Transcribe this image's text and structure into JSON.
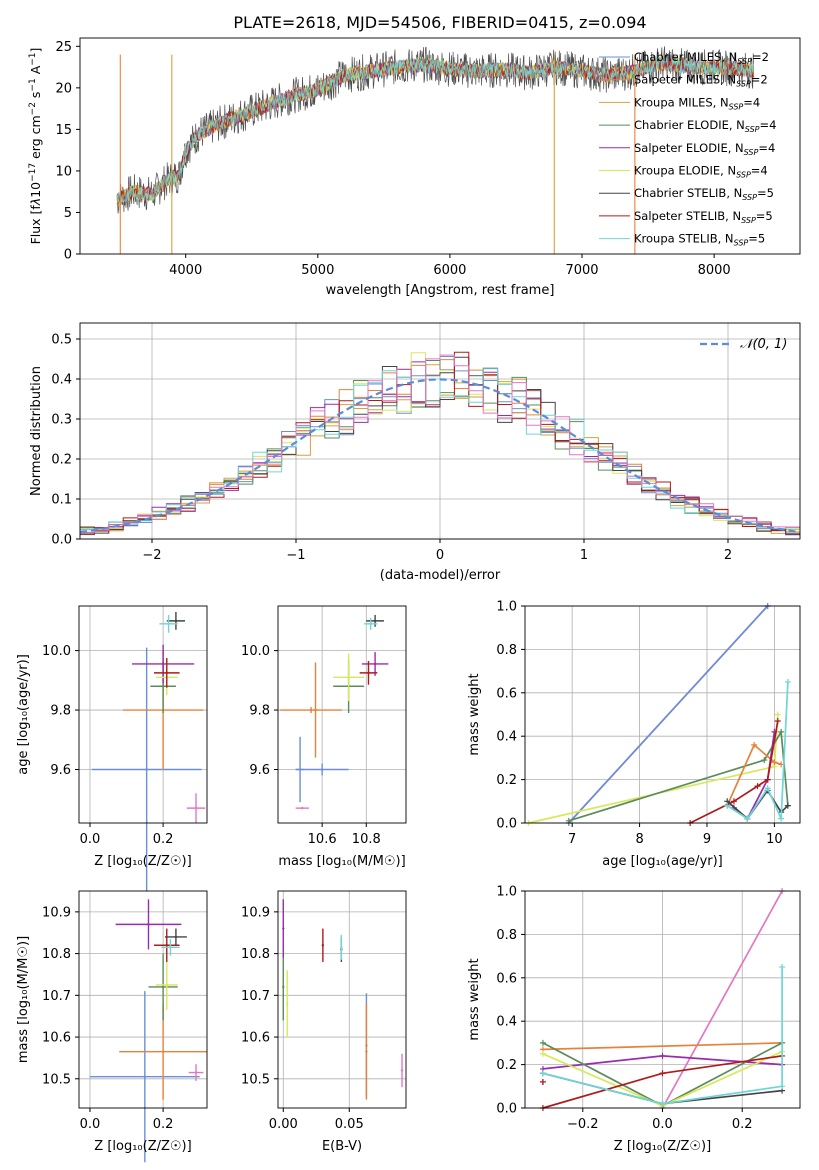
{
  "chart_data": [
    {
      "type": "line",
      "title": "PLATE=2618, MJD=54506, FIBERID=0415, z=0.094",
      "xlabel": "wavelength [Angstrom, rest frame]",
      "ylabel": "Flux [fλ10⁻¹⁷ erg cm⁻² s⁻¹ A⁻¹]",
      "xlim": [
        3200,
        8650
      ],
      "ylim": [
        0,
        26
      ],
      "xticks": [
        "4000",
        "5000",
        "6000",
        "7000",
        "8000"
      ],
      "yticks": [
        "0",
        "5",
        "10",
        "15",
        "20",
        "25"
      ],
      "legend_position": "right",
      "continuum_points": [
        [
          3480,
          6.5
        ],
        [
          3600,
          7.5
        ],
        [
          3750,
          7.2
        ],
        [
          3850,
          8.8
        ],
        [
          3950,
          9.5
        ],
        [
          4000,
          12.5
        ],
        [
          4100,
          14.5
        ],
        [
          4300,
          16
        ],
        [
          4500,
          17.2
        ],
        [
          4800,
          19
        ],
        [
          5000,
          19.8
        ],
        [
          5200,
          21.5
        ],
        [
          5400,
          22
        ],
        [
          5600,
          22.5
        ],
        [
          5800,
          22.8
        ],
        [
          6000,
          22.3
        ],
        [
          6200,
          22
        ],
        [
          6400,
          22.2
        ],
        [
          6600,
          21.8
        ],
        [
          6800,
          22.5
        ],
        [
          7000,
          22
        ],
        [
          7200,
          21.5
        ],
        [
          7400,
          22
        ],
        [
          7600,
          23
        ],
        [
          7800,
          22.5
        ],
        [
          8000,
          22.5
        ],
        [
          8200,
          22.3
        ],
        [
          8300,
          22
        ]
      ],
      "series": [
        {
          "name": "Chabrier MILES, N",
          "subscript": "SSP",
          "suffix": "=2",
          "color": "#6a8fd8"
        },
        {
          "name": "Salpeter MILES, N",
          "subscript": "SSP",
          "suffix": "=2",
          "color": "#e8823a"
        },
        {
          "name": "Kroupa MILES, N",
          "subscript": "SSP",
          "suffix": "=4",
          "color": "#d6a23a"
        },
        {
          "name": "Chabrier ELODIE, N",
          "subscript": "SSP",
          "suffix": "=4",
          "color": "#5b8c5a"
        },
        {
          "name": "Salpeter ELODIE, N",
          "subscript": "SSP",
          "suffix": "=4",
          "color": "#9a2bb0"
        },
        {
          "name": "Kroupa ELODIE, N",
          "subscript": "SSP",
          "suffix": "=4",
          "color": "#d8e85a"
        },
        {
          "name": "Chabrier STELIB, N",
          "subscript": "SSP",
          "suffix": "=5",
          "color": "#444444"
        },
        {
          "name": "Salpeter STELIB, N",
          "subscript": "SSP",
          "suffix": "=5",
          "color": "#b01a1a"
        },
        {
          "name": "Kroupa STELIB, N",
          "subscript": "SSP",
          "suffix": "=5",
          "color": "#6dd6d6"
        }
      ]
    },
    {
      "type": "histogram",
      "xlabel": "(data-model)/error",
      "ylabel": "Normed distribution",
      "xlim": [
        -2.5,
        2.5
      ],
      "ylim": [
        0,
        0.54
      ],
      "xticks": [
        "−2",
        "−1",
        "0",
        "1",
        "2"
      ],
      "yticks": [
        "0.0",
        "0.1",
        "0.2",
        "0.3",
        "0.4",
        "0.5"
      ],
      "legend": "𝒩(0, 1)",
      "legend_position": "top-right",
      "grid": true,
      "curve_color": "#5b8dd9"
    },
    {
      "type": "scatter",
      "xlabel": "Z [log₁₀(Z/Z☉)]",
      "ylabel": "age  [log₁₀(age/yr)]",
      "xlim": [
        -0.03,
        0.32
      ],
      "ylim": [
        9.42,
        10.15
      ],
      "xticks": [
        "0.0",
        "0.2"
      ],
      "yticks": [
        "9.6",
        "9.8",
        "10.0"
      ],
      "points": [
        {
          "x": 0.155,
          "y": 9.6,
          "xerr": 0.15,
          "yerr": 0.41,
          "color": "#6a8fd8"
        },
        {
          "x": 0.2,
          "y": 9.8,
          "xerr": 0.11,
          "yerr": 0.2,
          "color": "#e8823a"
        },
        {
          "x": 0.2,
          "y": 9.88,
          "xerr": 0.035,
          "yerr": 0.09,
          "color": "#5b8c5a"
        },
        {
          "x": 0.2,
          "y": 9.955,
          "xerr": 0.085,
          "yerr": 0.065,
          "color": "#9a2bb0"
        },
        {
          "x": 0.21,
          "y": 9.91,
          "xerr": 0.03,
          "yerr": 0.06,
          "color": "#d8e85a"
        },
        {
          "x": 0.21,
          "y": 9.925,
          "xerr": 0.035,
          "yerr": 0.05,
          "color": "#b01a1a"
        },
        {
          "x": 0.235,
          "y": 10.1,
          "xerr": 0.025,
          "yerr": 0.03,
          "color": "#444444"
        },
        {
          "x": 0.215,
          "y": 10.09,
          "xerr": 0.025,
          "yerr": 0.03,
          "color": "#6dd6d6"
        },
        {
          "x": 0.29,
          "y": 9.47,
          "xerr": 0.025,
          "yerr": 0.05,
          "color": "#e377c2"
        }
      ]
    },
    {
      "type": "scatter",
      "xlabel": "mass [log₁₀(M/M☉)]",
      "ylabel": "",
      "xlim": [
        10.4,
        10.98
      ],
      "ylim": [
        9.42,
        10.15
      ],
      "xticks": [
        "10.6",
        "10.8"
      ],
      "yticks": [
        "9.6",
        "9.8",
        "10.0"
      ],
      "points": [
        {
          "x": 10.6,
          "y": 9.6,
          "xerr": 0.12,
          "yerr": 0.02,
          "color": "#6a8fd8"
        },
        {
          "x": 10.5,
          "y": 9.6,
          "xerr": 0.02,
          "yerr": 0.11,
          "color": "#6a8fd8"
        },
        {
          "x": 10.55,
          "y": 9.8,
          "xerr": 0.14,
          "yerr": 0.01,
          "color": "#e8823a"
        },
        {
          "x": 10.57,
          "y": 9.8,
          "xerr": 0.01,
          "yerr": 0.16,
          "color": "#e8823a"
        },
        {
          "x": 10.72,
          "y": 9.88,
          "xerr": 0.07,
          "yerr": 0.09,
          "color": "#5b8c5a"
        },
        {
          "x": 10.72,
          "y": 9.91,
          "xerr": 0.07,
          "yerr": 0.08,
          "color": "#d8e85a"
        },
        {
          "x": 10.84,
          "y": 9.955,
          "xerr": 0.06,
          "yerr": 0.04,
          "color": "#9a2bb0"
        },
        {
          "x": 10.81,
          "y": 9.925,
          "xerr": 0.04,
          "yerr": 0.04,
          "color": "#b01a1a"
        },
        {
          "x": 10.84,
          "y": 10.1,
          "xerr": 0.04,
          "yerr": 0.02,
          "color": "#444444"
        },
        {
          "x": 10.82,
          "y": 10.09,
          "xerr": 0.03,
          "yerr": 0.02,
          "color": "#6dd6d6"
        },
        {
          "x": 10.51,
          "y": 9.47,
          "xerr": 0.03,
          "yerr": 0.0,
          "color": "#e377c2"
        }
      ]
    },
    {
      "type": "line",
      "xlabel": "age  [log₁₀(age/yr)]",
      "ylabel": "mass weight",
      "xlim": [
        6.3,
        10.38
      ],
      "ylim": [
        0,
        1
      ],
      "xticks": [
        "7",
        "8",
        "9",
        "10"
      ],
      "yticks": [
        "0.0",
        "0.2",
        "0.4",
        "0.6",
        "0.8",
        "1.0"
      ],
      "grid": true
    },
    {
      "type": "scatter",
      "xlabel": "Z [log₁₀(Z/Z☉)]",
      "ylabel": "mass [log₁₀(M/M☉)]",
      "xlim": [
        -0.03,
        0.32
      ],
      "ylim": [
        10.43,
        10.95
      ],
      "xticks": [
        "0.0",
        "0.2"
      ],
      "yticks": [
        "10.5",
        "10.6",
        "10.7",
        "10.8",
        "10.9"
      ],
      "points": [
        {
          "x": 0.15,
          "y": 10.505,
          "xerr": 0.15,
          "yerr": 0.205,
          "color": "#6a8fd8"
        },
        {
          "x": 0.2,
          "y": 10.565,
          "xerr": 0.12,
          "yerr": 0.115,
          "color": "#e8823a"
        },
        {
          "x": 0.2,
          "y": 10.72,
          "xerr": 0.04,
          "yerr": 0.08,
          "color": "#5b8c5a"
        },
        {
          "x": 0.16,
          "y": 10.87,
          "xerr": 0.09,
          "yerr": 0.06,
          "color": "#9a2bb0"
        },
        {
          "x": 0.21,
          "y": 10.725,
          "xerr": 0.03,
          "yerr": 0.06,
          "color": "#d8e85a"
        },
        {
          "x": 0.21,
          "y": 10.82,
          "xerr": 0.035,
          "yerr": 0.04,
          "color": "#b01a1a"
        },
        {
          "x": 0.235,
          "y": 10.84,
          "xerr": 0.03,
          "yerr": 0.02,
          "color": "#444444"
        },
        {
          "x": 0.22,
          "y": 10.815,
          "xerr": 0.025,
          "yerr": 0.02,
          "color": "#6dd6d6"
        },
        {
          "x": 0.29,
          "y": 10.515,
          "xerr": 0.02,
          "yerr": 0.02,
          "color": "#e377c2"
        }
      ]
    },
    {
      "type": "scatter",
      "xlabel": "E(B-V)",
      "ylabel": "",
      "xlim": [
        -0.004,
        0.093
      ],
      "ylim": [
        10.43,
        10.95
      ],
      "xticks": [
        "0.00",
        "0.05"
      ],
      "yticks": [
        "10.5",
        "10.6",
        "10.7",
        "10.8",
        "10.9"
      ],
      "points": [
        {
          "x": 0.063,
          "y": 10.58,
          "yerr": 0.125,
          "color": "#6a8fd8"
        },
        {
          "x": 0.063,
          "y": 10.565,
          "yerr": 0.115,
          "color": "#e8823a"
        },
        {
          "x": 0.0,
          "y": 10.72,
          "yerr": 0.08,
          "color": "#5b8c5a"
        },
        {
          "x": 0.0,
          "y": 10.86,
          "yerr": 0.07,
          "color": "#9a2bb0"
        },
        {
          "x": 0.003,
          "y": 10.68,
          "yerr": 0.08,
          "color": "#d8e85a"
        },
        {
          "x": 0.03,
          "y": 10.82,
          "yerr": 0.04,
          "color": "#b01a1a"
        },
        {
          "x": 0.044,
          "y": 10.81,
          "yerr": 0.03,
          "color": "#444444"
        },
        {
          "x": 0.044,
          "y": 10.815,
          "yerr": 0.03,
          "color": "#6dd6d6"
        },
        {
          "x": 0.09,
          "y": 10.52,
          "yerr": 0.04,
          "color": "#e377c2"
        }
      ]
    },
    {
      "type": "line",
      "xlabel": "Z [log₁₀(Z/Z☉)]",
      "ylabel": "mass weight",
      "xlim": [
        -0.345,
        0.345
      ],
      "ylim": [
        0,
        1
      ],
      "xticks": [
        "−0.2",
        "0.0",
        "0.2"
      ],
      "yticks": [
        "0.0",
        "0.2",
        "0.4",
        "0.6",
        "0.8",
        "1.0"
      ],
      "grid": true
    }
  ]
}
